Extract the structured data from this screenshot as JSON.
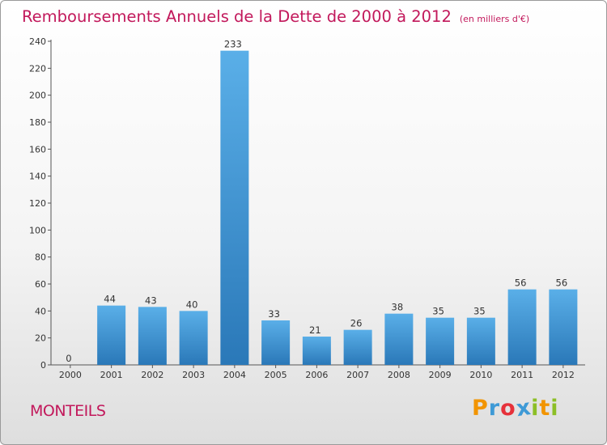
{
  "chart_data": {
    "type": "bar",
    "title": "Remboursements Annuels de la Dette de 2000 à 2012",
    "unit_note": "(en milliers d'€)",
    "xlabel": "",
    "ylabel": "",
    "categories": [
      "2000",
      "2001",
      "2002",
      "2003",
      "2004",
      "2005",
      "2006",
      "2007",
      "2008",
      "2009",
      "2010",
      "2011",
      "2012"
    ],
    "values": [
      0,
      44,
      43,
      40,
      233,
      33,
      21,
      26,
      38,
      35,
      35,
      56,
      56
    ],
    "ylim": [
      0,
      240
    ],
    "yticks": [
      0,
      20,
      40,
      60,
      80,
      100,
      120,
      140,
      160,
      180,
      200,
      220,
      240
    ],
    "grid": false,
    "legend": "none",
    "bar_color": "#3d94d6",
    "bar_color_light": "#5aafe8",
    "bar_color_dark": "#2a78b8"
  },
  "place": "MONTEILS",
  "brand": {
    "letters": [
      "P",
      "r",
      "o",
      "x",
      "i",
      "t",
      "i"
    ],
    "colors": [
      "#f29400",
      "#3e9ad6",
      "#e6313a",
      "#3e9ad6",
      "#8cbf26",
      "#f29400",
      "#8cbf26"
    ]
  },
  "title_color": "#c2185b"
}
